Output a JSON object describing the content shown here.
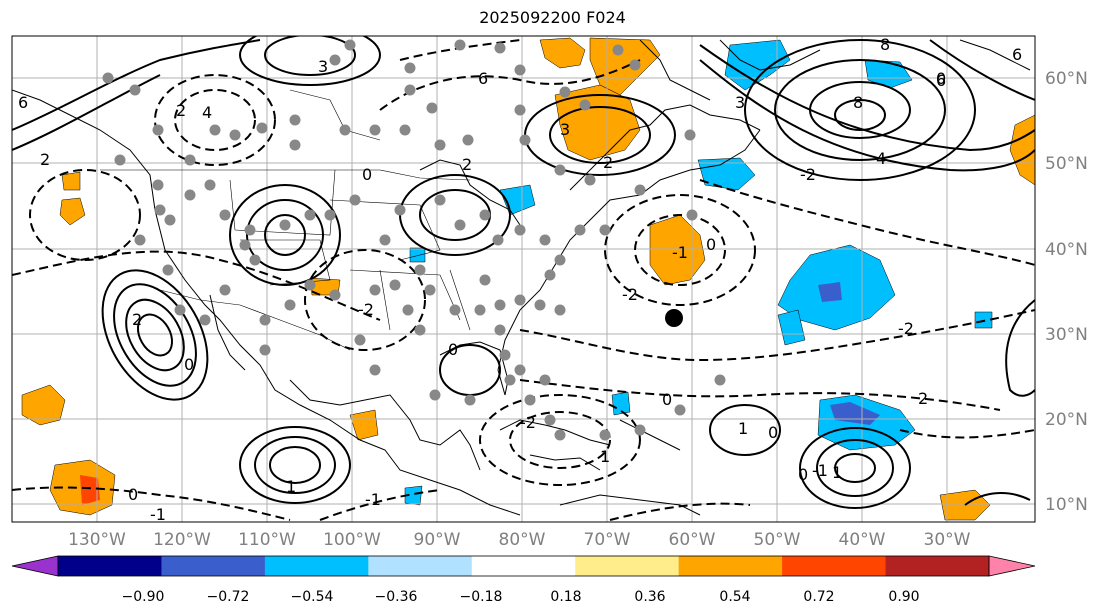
{
  "title": "2025092200 F024",
  "lat_labels": [
    "60°N",
    "50°N",
    "40°N",
    "30°N",
    "20°N",
    "10°N"
  ],
  "lon_labels": [
    "130°W",
    "120°W",
    "110°W",
    "100°W",
    "90°W",
    "80°W",
    "70°W",
    "60°W",
    "50°W",
    "40°W",
    "30°W"
  ],
  "colorbar": {
    "ticks": [
      "−0.90",
      "−0.72",
      "−0.54",
      "−0.36",
      "−0.18",
      "0.18",
      "0.36",
      "0.54",
      "0.72",
      "0.90"
    ],
    "colors": [
      "#9a32cd",
      "#00008b",
      "#3a5fcd",
      "#00bfff",
      "#b0e2ff",
      "#ffffff",
      "#ffec8b",
      "#ffa500",
      "#ff4500",
      "#b22222",
      "#ff82ab"
    ]
  },
  "contour_labels": [
    "3",
    "6",
    "8",
    "6",
    "4",
    "2",
    "3",
    "3",
    "2",
    "4",
    "2",
    "2",
    "0",
    "0",
    "-1",
    "1",
    "0",
    "-2",
    "0",
    "-1",
    "-2",
    "-2",
    "1",
    "0",
    "-1",
    "1",
    "-1",
    "0",
    "0",
    "1",
    "0",
    "-2",
    "2",
    "-2",
    "0",
    "6",
    "2",
    "8",
    "6"
  ],
  "colors": {
    "grid": "#b0b0b0",
    "coast": "#000000",
    "marker_gray": "#888888",
    "marker_black": "#000000"
  }
}
